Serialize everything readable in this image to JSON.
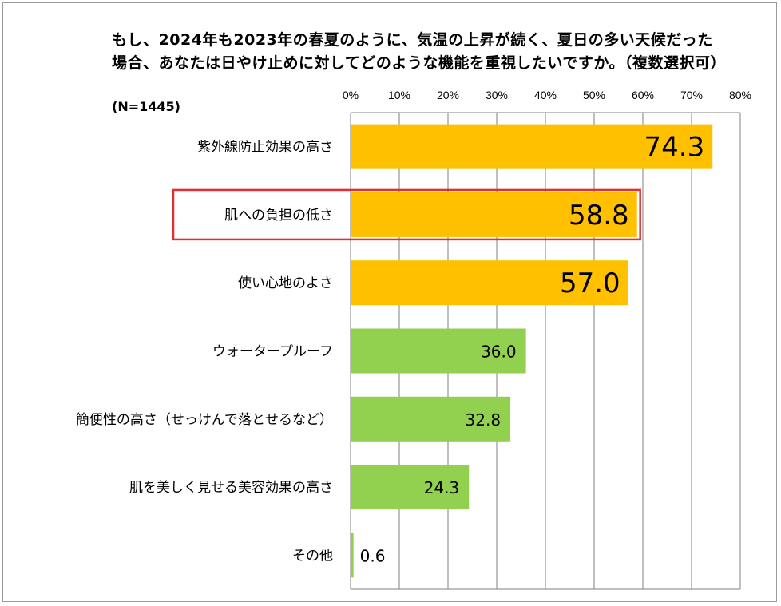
{
  "chart_data": {
    "type": "bar",
    "orientation": "horizontal",
    "title": "もし、2024年も2023年の春夏のように、気温の上昇が続く、夏日の多い天候だった場合、あなたは日やけ止めに対してどのような機能を重視したいですか。（複数選択可）",
    "sample_size": "(N=1445)",
    "categories": [
      "紫外線防止効果の高さ",
      "肌への負担の低さ",
      "使い心地のよさ",
      "ウォータープルーフ",
      "簡便性の高さ（せっけんで落とせるなど）",
      "肌を美しく見せる美容効果の高さ",
      "その他"
    ],
    "values": [
      74.3,
      58.8,
      57.0,
      36.0,
      32.8,
      24.3,
      0.6
    ],
    "value_labels": [
      "74.3",
      "58.8",
      "57.0",
      "36.0",
      "32.8",
      "24.3",
      "0.6"
    ],
    "xlim": [
      0,
      80
    ],
    "x_ticks": [
      "0%",
      "10%",
      "20%",
      "30%",
      "40%",
      "50%",
      "60%",
      "70%",
      "80%"
    ],
    "highlighted_category": "肌への負担の低さ",
    "colors": {
      "top3": "#FFC000",
      "others": "#92D050",
      "highlight_box": "#E03030",
      "grid": "#7f7f7f"
    }
  }
}
